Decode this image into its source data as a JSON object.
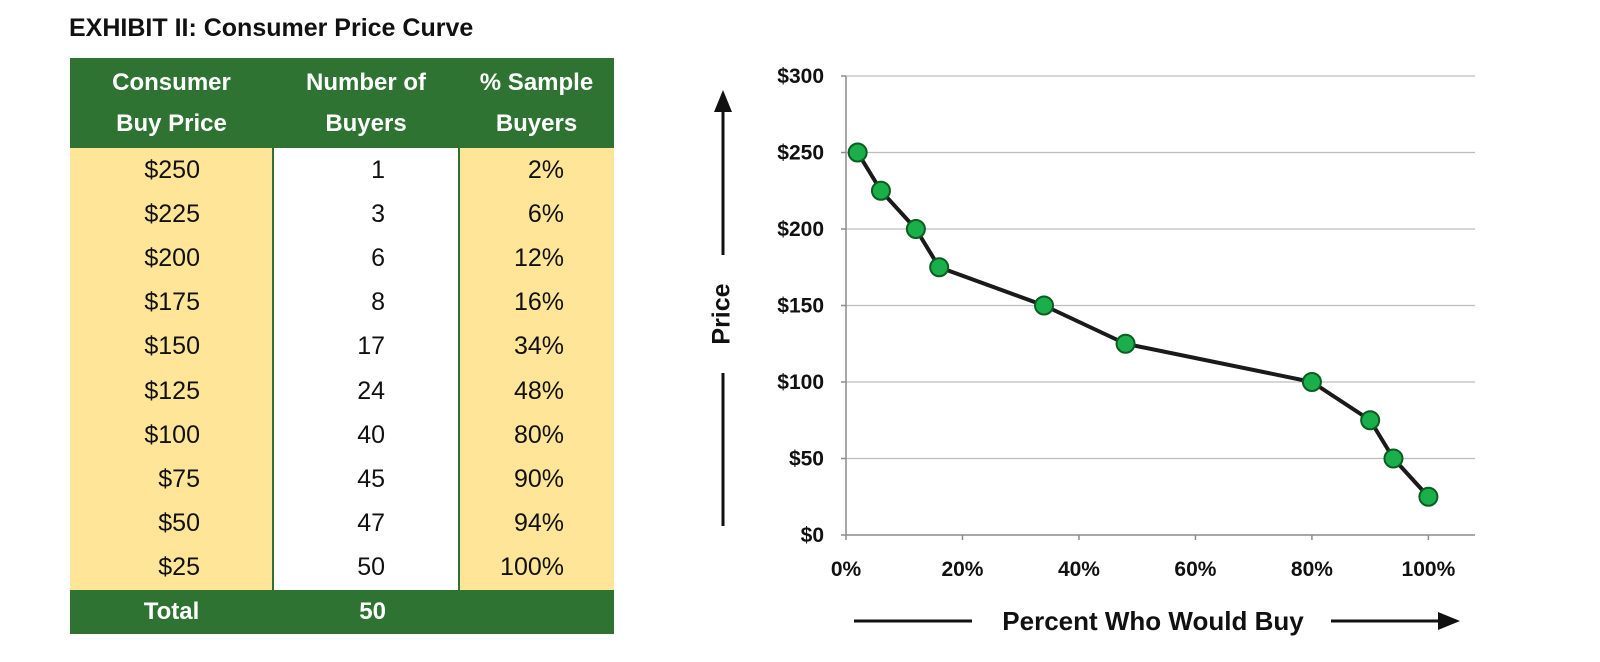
{
  "title": "EXHIBIT II: Consumer Price Curve",
  "table": {
    "headers": [
      [
        "Consumer",
        "Buy Price"
      ],
      [
        "Number of",
        "Buyers"
      ],
      [
        "% Sample",
        "Buyers"
      ]
    ],
    "rows": [
      [
        "$250",
        "1",
        "2%"
      ],
      [
        "$225",
        "3",
        "6%"
      ],
      [
        "$200",
        "6",
        "12%"
      ],
      [
        "$175",
        "8",
        "16%"
      ],
      [
        "$150",
        "17",
        "34%"
      ],
      [
        "$125",
        "24",
        "48%"
      ],
      [
        "$100",
        "40",
        "80%"
      ],
      [
        "$75",
        "45",
        "90%"
      ],
      [
        "$50",
        "47",
        "94%"
      ],
      [
        "$25",
        "50",
        "100%"
      ]
    ],
    "footer": [
      "Total",
      "50",
      ""
    ]
  },
  "colors": {
    "header_green": "#2e7331",
    "cell_yellow": "#ffe597",
    "marker_fill": "#1aaf4b",
    "marker_stroke": "#0b5d22",
    "line": "#1a1a1a"
  },
  "chart_data": {
    "type": "line",
    "x": [
      2,
      6,
      12,
      16,
      34,
      48,
      80,
      90,
      94,
      100
    ],
    "y": [
      250,
      225,
      200,
      175,
      150,
      125,
      100,
      75,
      50,
      25
    ],
    "xlim": [
      0,
      108
    ],
    "ylim": [
      0,
      300
    ],
    "xticks": [
      0,
      20,
      40,
      60,
      80,
      100
    ],
    "xtick_labels": [
      "0%",
      "20%",
      "40%",
      "60%",
      "80%",
      "100%"
    ],
    "yticks": [
      0,
      50,
      100,
      150,
      200,
      250,
      300
    ],
    "ytick_labels": [
      "$0",
      "$50",
      "$100",
      "$150",
      "$200",
      "$250",
      "$300"
    ],
    "xlabel": "Percent Who Would Buy",
    "ylabel": "Price",
    "grid": "horizontal"
  }
}
